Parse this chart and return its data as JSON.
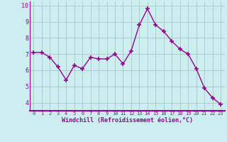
{
  "x": [
    0,
    1,
    2,
    3,
    4,
    5,
    6,
    7,
    8,
    9,
    10,
    11,
    12,
    13,
    14,
    15,
    16,
    17,
    18,
    19,
    20,
    21,
    22,
    23
  ],
  "y": [
    7.1,
    7.1,
    6.8,
    6.2,
    5.4,
    6.3,
    6.1,
    6.8,
    6.7,
    6.7,
    7.0,
    6.4,
    7.2,
    8.8,
    9.8,
    8.8,
    8.4,
    7.8,
    7.3,
    7.0,
    6.1,
    4.9,
    4.3,
    3.9
  ],
  "line_color": "#990099",
  "marker_color": "#990099",
  "bg_color": "#cceeee",
  "grid_color": "#aacccc",
  "xlabel": "Windchill (Refroidissement éolien,°C)",
  "xlabel_color": "#990099",
  "tick_color": "#990099",
  "ylim": [
    3.5,
    10.25
  ],
  "xlim": [
    -0.5,
    23.5
  ],
  "yticks": [
    4,
    5,
    6,
    7,
    8,
    9,
    10
  ],
  "xticks": [
    0,
    1,
    2,
    3,
    4,
    5,
    6,
    7,
    8,
    9,
    10,
    11,
    12,
    13,
    14,
    15,
    16,
    17,
    18,
    19,
    20,
    21,
    22,
    23
  ],
  "marker_size": 4,
  "line_width": 1.0
}
